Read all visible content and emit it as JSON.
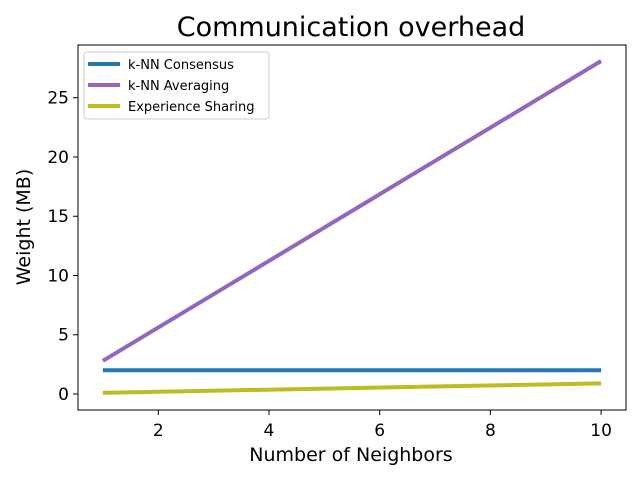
{
  "chart_data": {
    "type": "line",
    "title": "Communication overhead",
    "xlabel": "Number of Neighbors",
    "ylabel": "Weight (MB)",
    "xlim": [
      0.55,
      10.45
    ],
    "ylim": [
      -1.35,
      29.45
    ],
    "xticks": [
      2,
      4,
      6,
      8,
      10
    ],
    "yticks": [
      0,
      5,
      10,
      15,
      20,
      25
    ],
    "grid": false,
    "legend_position": "top-left",
    "series": [
      {
        "name": "k-NN Consensus",
        "color": "#1f77b4",
        "x": [
          1,
          10
        ],
        "y": [
          2.0,
          2.0
        ]
      },
      {
        "name": "k-NN Averaging",
        "color": "#9467bd",
        "x": [
          1,
          10
        ],
        "y": [
          2.8,
          28.1
        ]
      },
      {
        "name": "Experience Sharing",
        "color": "#bcbd22",
        "x": [
          1,
          10
        ],
        "y": [
          0.1,
          0.9
        ]
      }
    ]
  }
}
